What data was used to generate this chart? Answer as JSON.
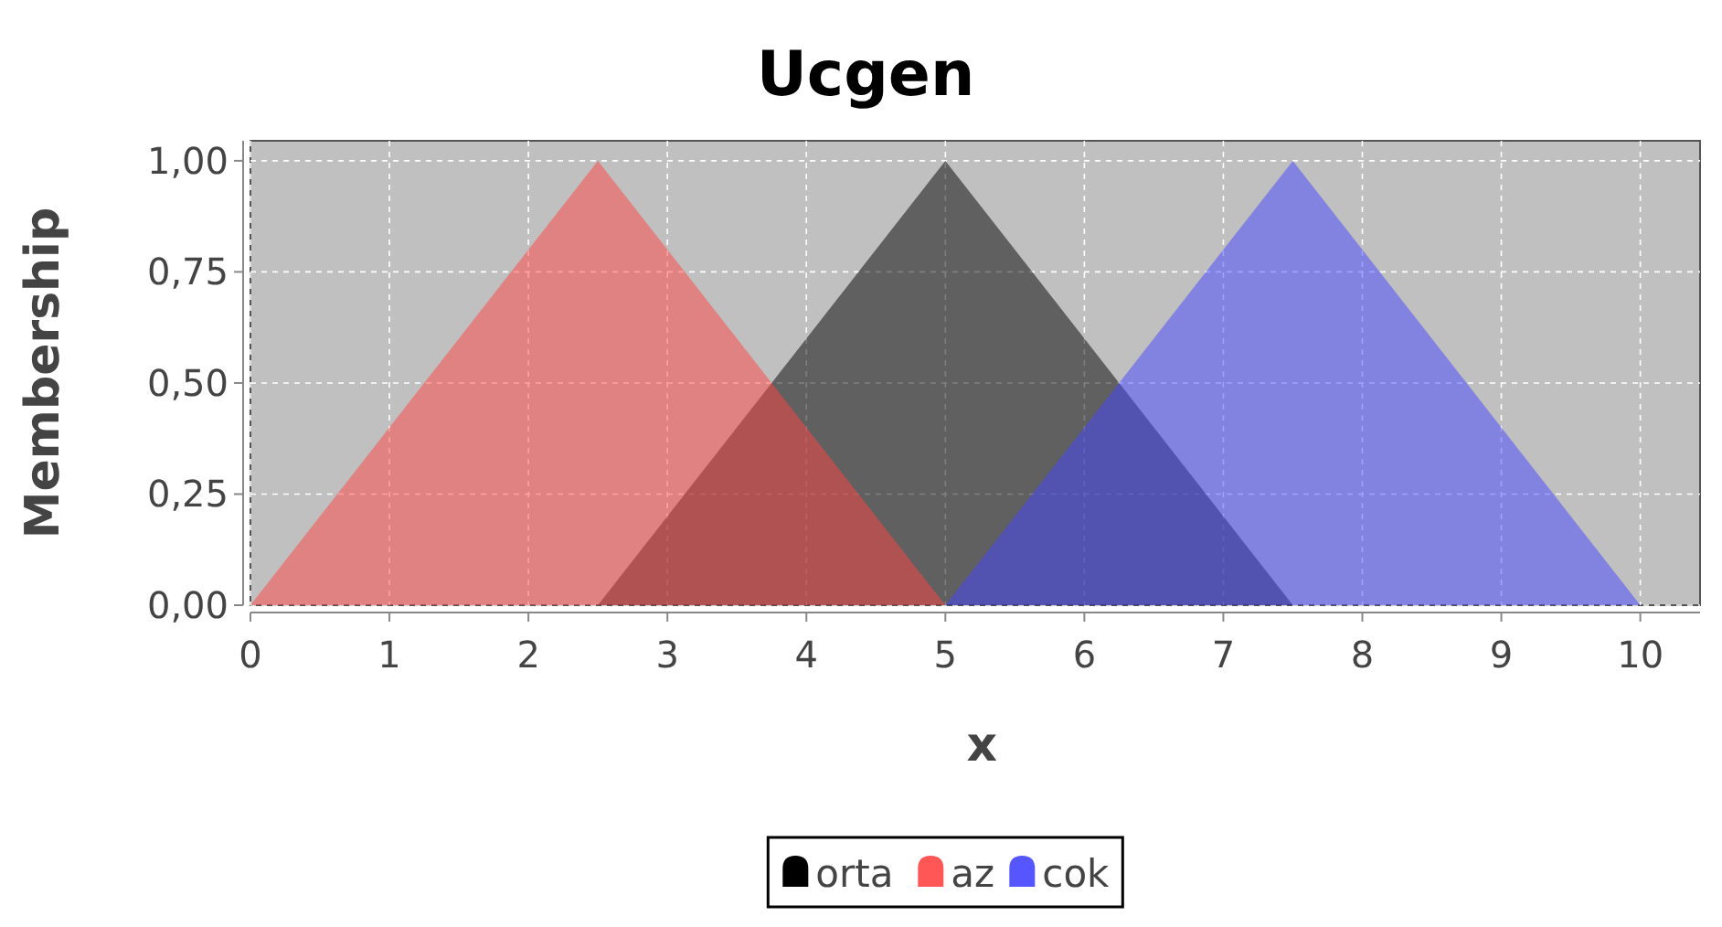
{
  "chart_data": {
    "type": "area",
    "title": "Ucgen",
    "xlabel": "x",
    "ylabel": "Membership",
    "xlim": [
      0,
      10.43
    ],
    "xticks": [
      0,
      1,
      2,
      3,
      4,
      5,
      6,
      7,
      8,
      9,
      10
    ],
    "ylim": [
      0,
      1.045
    ],
    "yticks": [
      {
        "value": 0,
        "label": "0,00"
      },
      {
        "value": 0.25,
        "label": "0,25"
      },
      {
        "value": 0.5,
        "label": "0,50"
      },
      {
        "value": 0.75,
        "label": "0,75"
      },
      {
        "value": 1,
        "label": "1,00"
      }
    ],
    "grid": true,
    "legend": "bottom",
    "series": [
      {
        "name": "orta",
        "color": "#000000",
        "x": [
          2.5,
          5,
          7.5
        ],
        "values": [
          0,
          1,
          0
        ]
      },
      {
        "name": "az",
        "color": "#ff4444",
        "x": [
          0,
          2.5,
          5
        ],
        "values": [
          0,
          1,
          0
        ]
      },
      {
        "name": "cok",
        "color": "#4444ff",
        "x": [
          5,
          7.5,
          10
        ],
        "values": [
          0,
          1,
          0
        ]
      }
    ]
  }
}
